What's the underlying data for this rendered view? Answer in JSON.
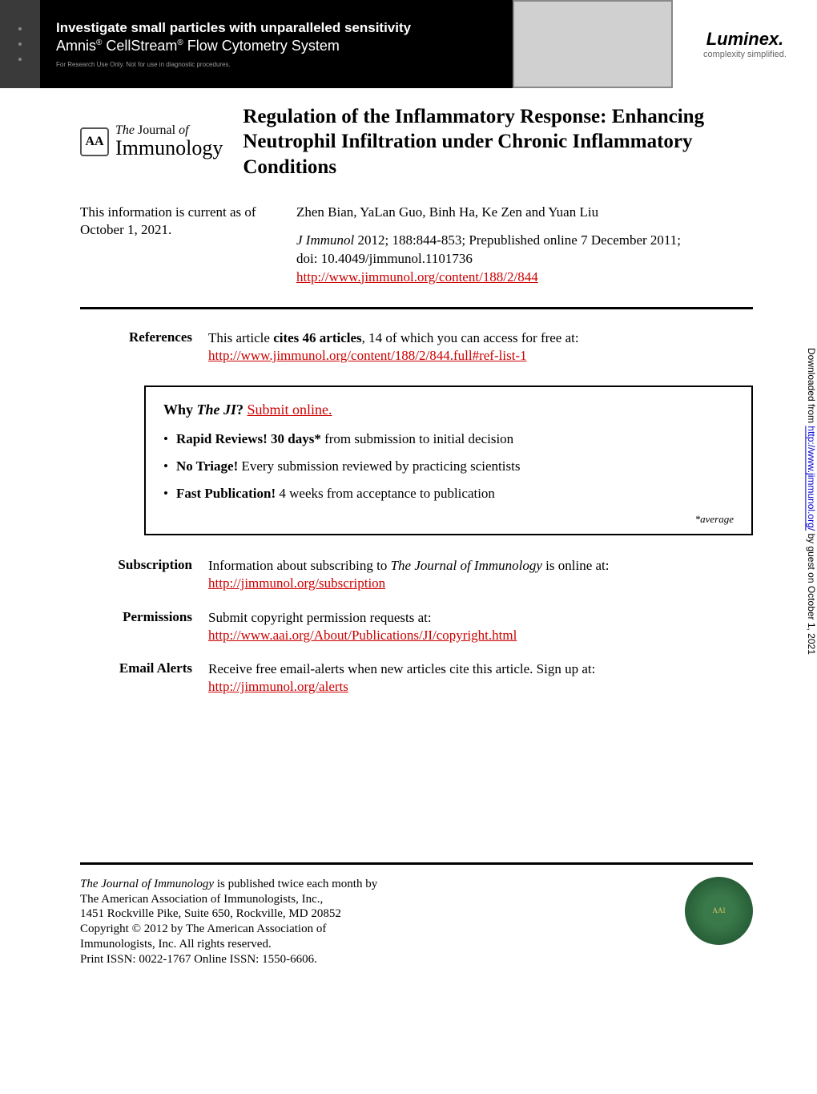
{
  "ad": {
    "headline": "Investigate small particles with unparalleled sensitivity",
    "subline_prefix": "Amnis",
    "subline_mid": " CellStream",
    "subline_suffix": " Flow Cytometry System",
    "disclaimer": "For Research Use Only. Not for use in diagnostic procedures.",
    "logo_name": "Luminex.",
    "logo_tagline": "complexity simplified."
  },
  "journal": {
    "seal_text": "AA",
    "top_line_prefix": "The",
    "top_line_main": "Journal",
    "top_line_suffix": "of",
    "bottom_line": "Immunology"
  },
  "article": {
    "title": "Regulation of the Inflammatory Response: Enhancing Neutrophil Infiltration under Chronic Inflammatory Conditions",
    "authors": "Zhen Bian, YaLan Guo, Binh Ha, Ke Zen and Yuan Liu",
    "current_info": "This information is current as of October 1, 2021.",
    "citation_line1": "J Immunol",
    "citation_line1_rest": " 2012; 188:844-853; Prepublished online 7 December 2011;",
    "doi": "doi: 10.4049/jimmunol.1101736",
    "url": "http://www.jimmunol.org/content/188/2/844"
  },
  "references": {
    "label": "References",
    "text_prefix": "This article ",
    "text_bold": "cites 46 articles",
    "text_suffix": ", 14 of which you can access for free at:",
    "url": "http://www.jimmunol.org/content/188/2/844.full#ref-list-1"
  },
  "why_box": {
    "heading_prefix": "Why ",
    "heading_italic": "The JI",
    "heading_q": "?",
    "heading_link": "Submit online.",
    "items": [
      {
        "bold": "Rapid Reviews! 30 days*",
        "rest": " from submission to initial decision"
      },
      {
        "bold": "No Triage!",
        "rest": " Every submission reviewed by practicing scientists"
      },
      {
        "bold": "Fast Publication!",
        "rest": " 4 weeks from acceptance to publication"
      }
    ],
    "footnote": "*average"
  },
  "sections": {
    "subscription": {
      "label": "Subscription",
      "text_prefix": "Information about subscribing to ",
      "text_italic": "The Journal of Immunology",
      "text_suffix": " is online at:",
      "url": "http://jimmunol.org/subscription"
    },
    "permissions": {
      "label": "Permissions",
      "text": "Submit copyright permission requests at:",
      "url": "http://www.aai.org/About/Publications/JI/copyright.html"
    },
    "email_alerts": {
      "label": "Email Alerts",
      "text": "Receive free email-alerts when new articles cite this article. Sign up at:",
      "url": "http://jimmunol.org/alerts"
    }
  },
  "side_note": {
    "prefix": "Downloaded from ",
    "url": "http://www.jimmunol.org/",
    "suffix": " by guest on October 1, 2021"
  },
  "footer": {
    "line1_italic": "The Journal of Immunology",
    "line1_rest": " is published twice each month by",
    "line2": "The American Association of Immunologists, Inc.,",
    "line3": "1451 Rockville Pike, Suite 650, Rockville, MD 20852",
    "line4": "Copyright © 2012 by The American Association of",
    "line5": "Immunologists, Inc. All rights reserved.",
    "line6": "Print ISSN: 0022-1767 Online ISSN: 1550-6606.",
    "seal_text": "AAI"
  }
}
